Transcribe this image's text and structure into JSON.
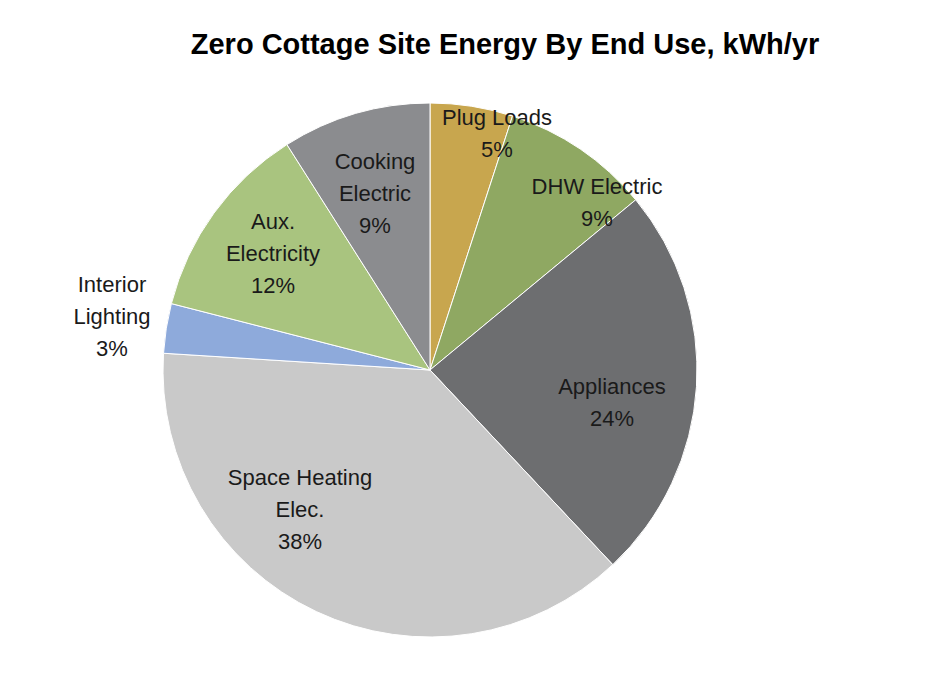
{
  "chart_data": {
    "type": "pie",
    "title": "Zero Cottage Site Energy By End Use, kWh/yr",
    "categories": [
      "Plug Loads",
      "DHW Electric",
      "Appliances",
      "Space Heating Elec.",
      "Interior Lighting",
      "Aux. Electricity",
      "Cooking Electric"
    ],
    "values": [
      5,
      9,
      24,
      38,
      3,
      12,
      9
    ],
    "value_labels": [
      "5%",
      "9%",
      "24%",
      "38%",
      "3%",
      "12%",
      "9%"
    ],
    "colors": [
      "#c8a64e",
      "#8fa862",
      "#6d6e70",
      "#c9c9c9",
      "#8eaadb",
      "#a9c47f",
      "#8b8c8f"
    ],
    "data_labels": true
  }
}
